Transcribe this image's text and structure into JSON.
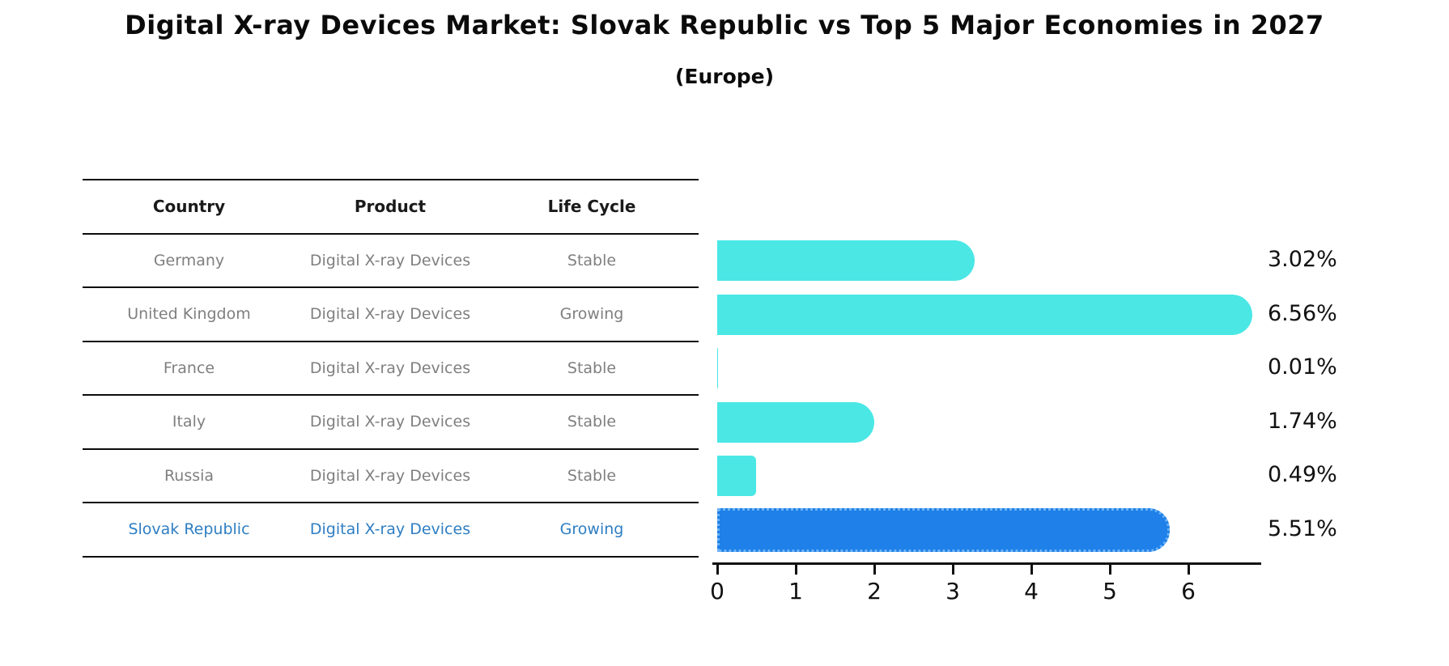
{
  "chart_data": {
    "type": "bar",
    "orientation": "horizontal",
    "title": "Digital X-ray Devices Market: Slovak Republic vs Top 5 Major Economies in 2027",
    "subtitle": "(Europe)",
    "categories": [
      "Germany",
      "United Kingdom",
      "France",
      "Italy",
      "Russia",
      "Slovak Republic"
    ],
    "values": [
      3.02,
      6.56,
      0.01,
      1.74,
      0.49,
      5.51
    ],
    "value_labels": [
      "3.02%",
      "6.56%",
      "0.01%",
      "1.74%",
      "0.49%",
      "5.51%"
    ],
    "x_ticks": [
      "0",
      "1",
      "2",
      "3",
      "4",
      "5",
      "6"
    ],
    "xlim": [
      0,
      6.92
    ],
    "grid": false,
    "legend": "none",
    "highlight_index": 5,
    "colors": {
      "bar": "#4ae7e5",
      "highlight_bar": "#1e80e8",
      "highlight_bar_border": "#6cb2f5",
      "highlight_text": "#2e7ec3",
      "table_text": "#7f7f7f",
      "header_text": "#1a1a1a",
      "axis": "#111111"
    }
  },
  "table": {
    "headers": [
      "Country",
      "Product",
      "Life Cycle"
    ],
    "rows": [
      {
        "country": "Germany",
        "product": "Digital X-ray Devices",
        "life_cycle": "Stable",
        "highlight": false
      },
      {
        "country": "United Kingdom",
        "product": "Digital X-ray Devices",
        "life_cycle": "Growing",
        "highlight": false
      },
      {
        "country": "France",
        "product": "Digital X-ray Devices",
        "life_cycle": "Stable",
        "highlight": false
      },
      {
        "country": "Italy",
        "product": "Digital X-ray Devices",
        "life_cycle": "Stable",
        "highlight": false
      },
      {
        "country": "Russia",
        "product": "Digital X-ray Devices",
        "life_cycle": "Stable",
        "highlight": false
      },
      {
        "country": "Slovak Republic",
        "product": "Digital X-ray Devices",
        "life_cycle": "Growing",
        "highlight": true
      }
    ]
  }
}
